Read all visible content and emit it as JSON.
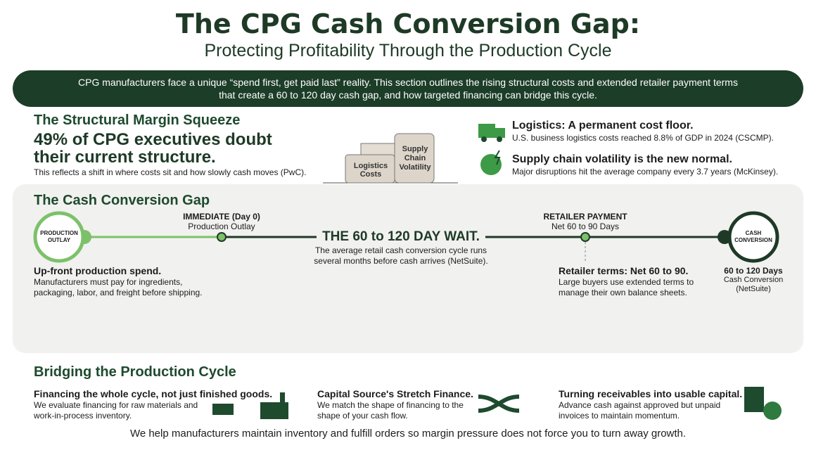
{
  "header": {
    "title": "The CPG Cash Conversion Gap:",
    "subtitle": "Protecting Profitability Through the Production Cycle"
  },
  "intro": "CPG manufacturers face a unique “spend first, get paid last” reality. This section outlines the rising structural costs and extended retailer payment terms that create a 60 to 120 day cash gap, and how targeted financing can bridge this cycle.",
  "margin_squeeze": {
    "heading": "The Structural Margin Squeeze",
    "stat": "49% of CPG executives doubt their current structure.",
    "note": "This reflects a shift in where costs sit and how slowly cash moves (PwC).",
    "blocks": [
      "Logistics Costs",
      "Supply Chain Volatility"
    ],
    "facts": [
      {
        "title": "Logistics: A permanent cost floor.",
        "text": "U.S. business logistics costs reached 8.8% of GDP in 2024 (CSCMP)."
      },
      {
        "title": "Supply chain volatility is the new normal.",
        "text": "Major disruptions hit the average company every 3.7 years (McKinsey)."
      }
    ]
  },
  "gap": {
    "heading": "The Cash Conversion Gap",
    "start_node": "PRODUCTION OUTLAY",
    "end_node": "CASH CONVERSION",
    "milestones": [
      {
        "label": "IMMEDIATE (Day 0)",
        "sub": "Production Outlay"
      },
      {
        "label": "RETAILER PAYMENT",
        "sub": "Net 60 to 90 Days"
      }
    ],
    "wait": {
      "title": "THE 60 to 120 DAY WAIT.",
      "text": "The average retail cash conversion cycle runs several months before cash arrives (NetSuite)."
    },
    "notes": [
      {
        "title": "Up-front production spend.",
        "text": "Manufacturers must pay for ingredients, packaging, labor, and freight before shipping."
      },
      {
        "title": "Retailer terms: Net 60 to 90.",
        "text": "Large buyers use extended terms to manage their own balance sheets."
      },
      {
        "title": "60 to 120 Days",
        "text": "Cash Conversion (NetSuite)"
      }
    ]
  },
  "bridging": {
    "heading": "Bridging the Production Cycle",
    "items": [
      {
        "title": "Financing the whole cycle, not just finished goods.",
        "text": "We evaluate financing for raw materials and work-in-process inventory."
      },
      {
        "title": "Capital Source's Stretch Finance.",
        "text": "We match the shape of financing to the shape of your cash flow."
      },
      {
        "title": "Turning receivables into usable capital.",
        "text": "Advance cash against approved but unpaid invoices to maintain momentum."
      }
    ],
    "footer": "We help manufacturers maintain inventory and fulfill orders so margin pressure does not force you to turn away growth."
  }
}
